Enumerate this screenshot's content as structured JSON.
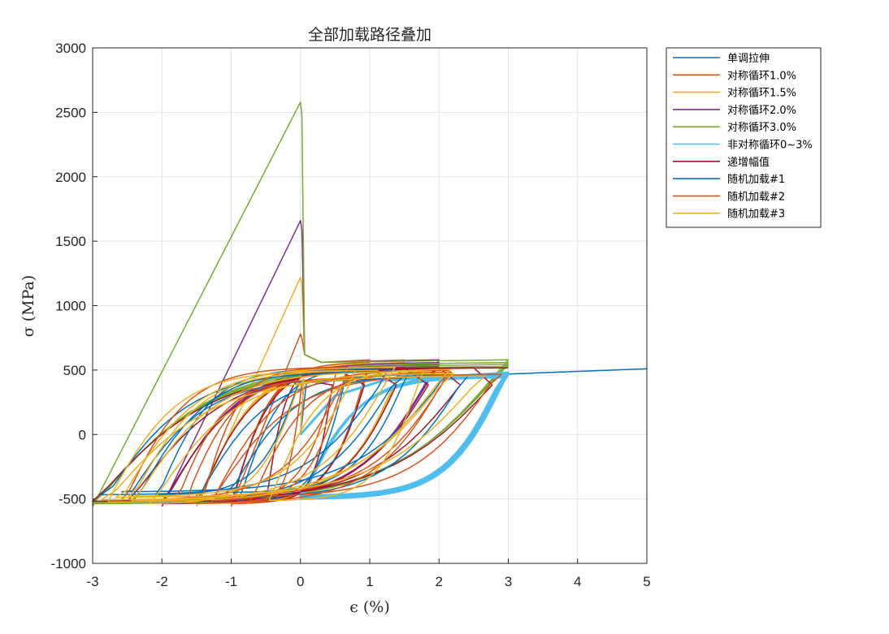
{
  "chart_data": {
    "type": "line",
    "title": "全部加载路径叠加",
    "xlabel": "ϵ (%)",
    "ylabel": "σ (MPa)",
    "xlim": [
      -3,
      5
    ],
    "ylim": [
      -1000,
      3000
    ],
    "xticks": [
      "-3",
      "-2",
      "-1",
      "0",
      "1",
      "2",
      "3",
      "4",
      "5"
    ],
    "yticks": [
      "-1000",
      "-500",
      "0",
      "500",
      "1000",
      "1500",
      "2000",
      "2500",
      "3000"
    ],
    "grid": true,
    "legend_position": "outside-top-right",
    "series": [
      {
        "name": "单调拉伸",
        "color": "#0072BD",
        "kind": "mono",
        "peak": 0,
        "amp": 0,
        "mean": 0,
        "sigmax": 510
      },
      {
        "name": "对称循环1.0%",
        "color": "#D95319",
        "kind": "sym",
        "peak": 780,
        "amp": 1.0,
        "mean": 0
      },
      {
        "name": "对称循环1.5%",
        "color": "#EDB120",
        "kind": "sym",
        "peak": 1220,
        "amp": 1.5,
        "mean": 0
      },
      {
        "name": "对称循环2.0%",
        "color": "#7E2F8E",
        "kind": "sym",
        "peak": 1660,
        "amp": 2.0,
        "mean": 0
      },
      {
        "name": "对称循环3.0%",
        "color": "#77AC30",
        "kind": "sym",
        "peak": 2580,
        "amp": 3.0,
        "mean": 0
      },
      {
        "name": "非对称循环0~3%",
        "color": "#4DBEEE",
        "kind": "asym",
        "peak": 0,
        "amp": 1.5,
        "mean": 1.5
      },
      {
        "name": "递增幅值",
        "color": "#A2142F",
        "kind": "incr",
        "peak": 0,
        "amp": 3.0,
        "mean": 0
      },
      {
        "name": "随机加载#1",
        "color": "#0072BD",
        "kind": "rand",
        "peak": 0,
        "amp": 3.0,
        "mean": 0,
        "seed": 11
      },
      {
        "name": "随机加载#2",
        "color": "#D95319",
        "kind": "rand",
        "peak": 0,
        "amp": 3.0,
        "mean": 0,
        "seed": 23
      },
      {
        "name": "随机加载#3",
        "color": "#EDB120",
        "kind": "rand",
        "peak": 0,
        "amp": 3.0,
        "mean": 0,
        "seed": 37
      }
    ]
  }
}
